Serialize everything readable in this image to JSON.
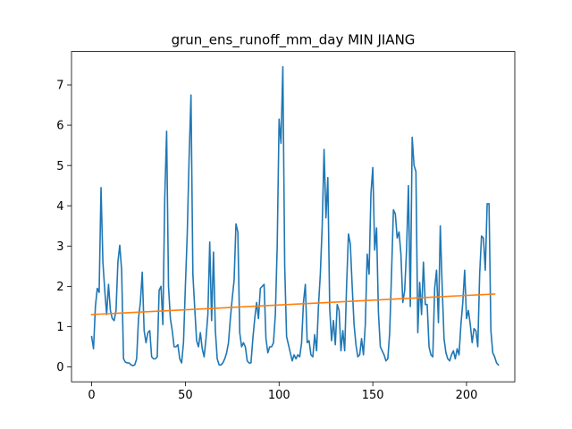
{
  "chart_data": {
    "type": "line",
    "title": "grun_ens_runoff_mm_day MIN JIANG",
    "xlabel": "",
    "ylabel": "",
    "xlim": [
      -10.75,
      225.75
    ],
    "ylim": [
      -0.37,
      7.83
    ],
    "xticks": [
      0,
      50,
      100,
      150,
      200
    ],
    "yticks": [
      0,
      1,
      2,
      3,
      4,
      5,
      6,
      7
    ],
    "grid": false,
    "legend": "none",
    "series": [
      {
        "color": "#1f77b4",
        "x_start": 0,
        "values": [
          0.75,
          0.45,
          1.5,
          1.95,
          1.85,
          4.45,
          2.6,
          1.9,
          1.3,
          2.05,
          1.4,
          1.2,
          1.15,
          1.4,
          2.6,
          3.02,
          2.4,
          0.2,
          0.12,
          0.1,
          0.1,
          0.05,
          0.03,
          0.05,
          0.2,
          1.2,
          1.6,
          2.35,
          0.9,
          0.6,
          0.85,
          0.9,
          0.25,
          0.2,
          0.2,
          0.25,
          1.9,
          2.0,
          1.05,
          4.2,
          5.85,
          2.0,
          1.2,
          0.9,
          0.5,
          0.5,
          0.55,
          0.2,
          0.1,
          0.6,
          2.0,
          3.3,
          5.2,
          6.75,
          2.3,
          1.45,
          0.65,
          0.5,
          0.85,
          0.45,
          0.25,
          0.7,
          1.3,
          3.1,
          1.15,
          2.85,
          0.9,
          0.2,
          0.05,
          0.05,
          0.1,
          0.2,
          0.35,
          0.6,
          1.2,
          1.7,
          2.15,
          3.55,
          3.35,
          0.85,
          0.5,
          0.6,
          0.5,
          0.15,
          0.1,
          0.1,
          0.7,
          1.2,
          1.6,
          1.2,
          1.95,
          2.0,
          2.05,
          0.7,
          0.35,
          0.5,
          0.5,
          0.6,
          1.3,
          3.0,
          6.15,
          5.55,
          7.45,
          2.5,
          0.75,
          0.55,
          0.35,
          0.15,
          0.3,
          0.2,
          0.3,
          0.25,
          0.6,
          1.6,
          2.05,
          0.6,
          0.65,
          0.3,
          0.25,
          0.8,
          0.4,
          1.5,
          2.3,
          3.5,
          5.4,
          3.7,
          4.7,
          1.45,
          0.65,
          1.15,
          0.55,
          1.55,
          1.4,
          0.4,
          0.9,
          0.4,
          2.0,
          3.3,
          3.05,
          2.0,
          1.05,
          0.55,
          0.25,
          0.3,
          0.7,
          0.3,
          1.05,
          2.8,
          2.3,
          4.3,
          4.95,
          2.9,
          3.45,
          1.35,
          0.5,
          0.4,
          0.3,
          0.15,
          0.2,
          0.85,
          2.35,
          3.9,
          3.8,
          3.2,
          3.35,
          2.8,
          1.6,
          1.9,
          2.9,
          4.5,
          1.5,
          5.7,
          5.0,
          4.85,
          0.85,
          2.1,
          1.3,
          2.6,
          1.55,
          1.55,
          0.5,
          0.3,
          0.25,
          1.95,
          2.4,
          1.1,
          3.5,
          2.0,
          0.7,
          0.35,
          0.2,
          0.15,
          0.3,
          0.4,
          0.2,
          0.45,
          0.3,
          1.05,
          1.6,
          2.4,
          1.2,
          1.4,
          1.05,
          0.6,
          0.95,
          0.9,
          0.5,
          2.3,
          3.25,
          3.2,
          2.4,
          4.05,
          4.05,
          0.9,
          0.35,
          0.25,
          0.1,
          0.05
        ]
      },
      {
        "color": "#ff7f0e",
        "x": [
          0,
          215
        ],
        "values": [
          1.3,
          1.81
        ]
      }
    ]
  }
}
